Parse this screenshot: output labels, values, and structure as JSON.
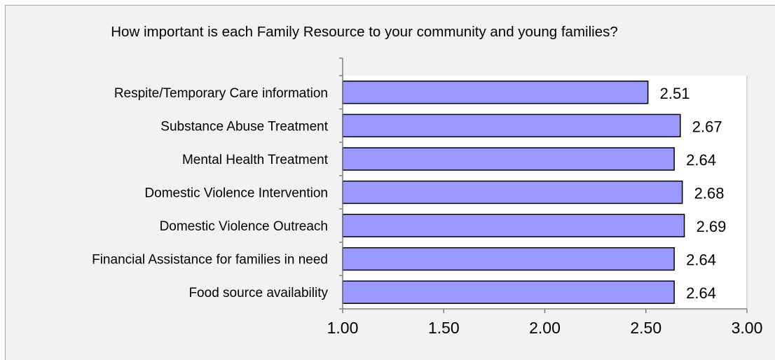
{
  "chart_data": {
    "type": "bar",
    "orientation": "horizontal",
    "title": "How important is each Family Resource to your community and young families?",
    "xlabel": "",
    "ylabel": "",
    "categories": [
      "Respite/Temporary Care information",
      "Substance Abuse Treatment",
      "Mental Health Treatment",
      "Domestic Violence Intervention",
      "Domestic Violence Outreach",
      "Financial Assistance for families in need",
      "Food source availability"
    ],
    "values": [
      2.51,
      2.67,
      2.64,
      2.68,
      2.69,
      2.64,
      2.64
    ],
    "data_labels": [
      "2.51",
      "2.67",
      "2.64",
      "2.68",
      "2.69",
      "2.64",
      "2.64"
    ],
    "xlim": [
      1.0,
      3.0
    ],
    "x_ticks": [
      1.0,
      1.5,
      2.0,
      2.5,
      3.0
    ],
    "x_tick_labels": [
      "1.00",
      "1.50",
      "2.00",
      "2.50",
      "3.00"
    ],
    "grid": false,
    "legend": "none",
    "colors": {
      "bar_fill": "#9999ff",
      "bar_stroke": "#000000",
      "plot_background": "#ffffff",
      "chart_background": "#f2f2f2",
      "axis": "#7f7f7f"
    }
  }
}
